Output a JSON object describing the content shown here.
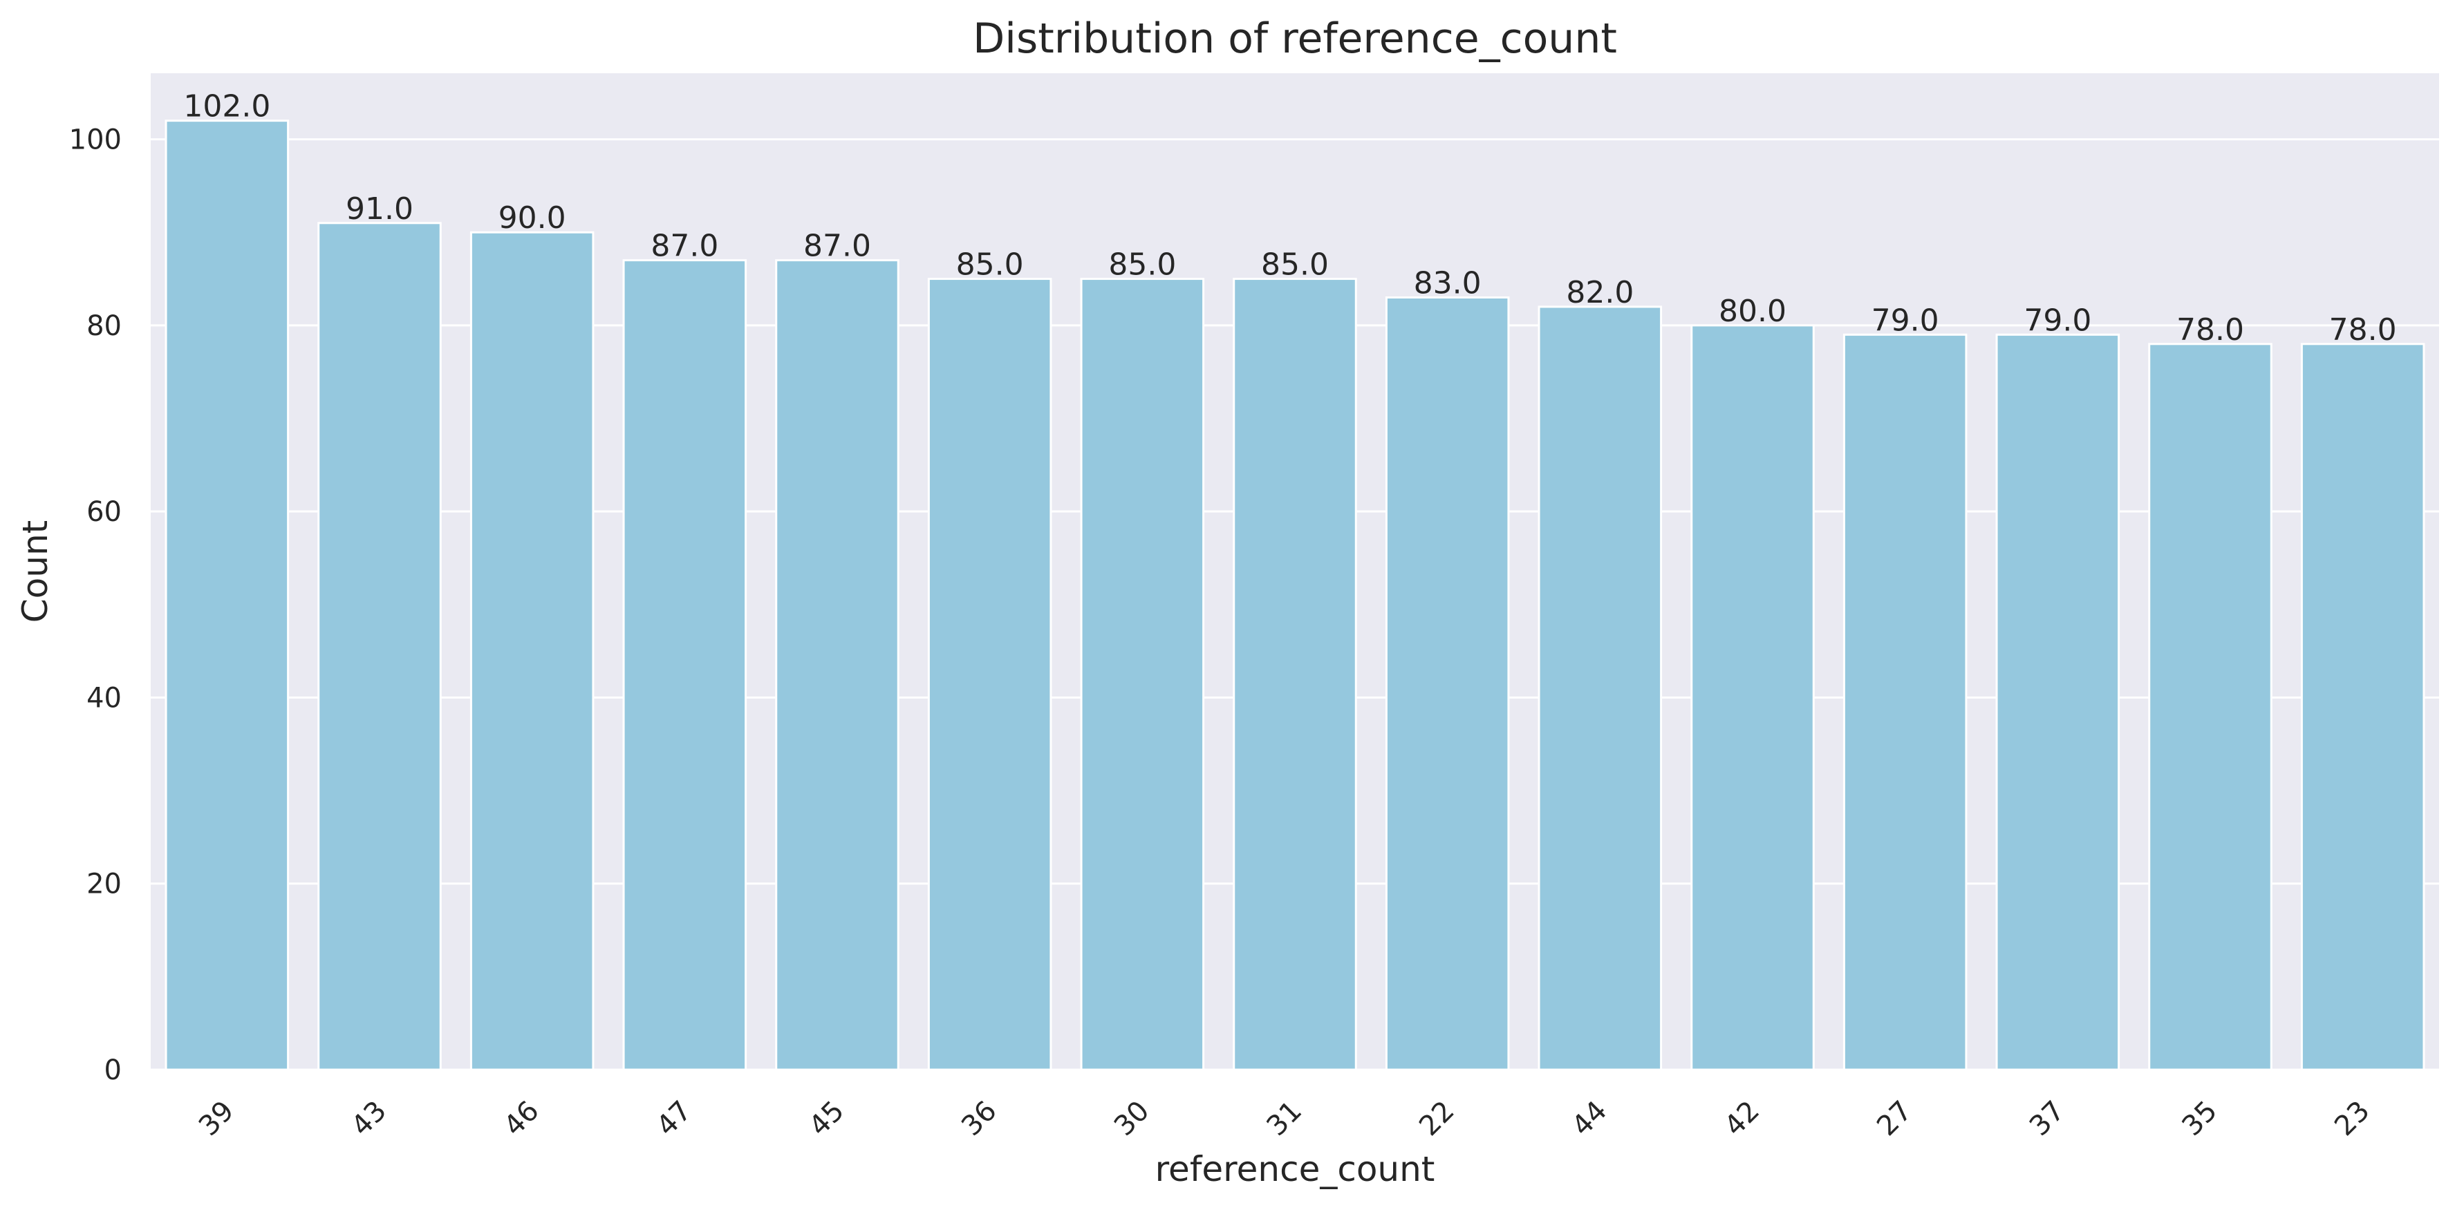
{
  "chart_data": {
    "type": "bar",
    "title": "Distribution of reference_count",
    "xlabel": "reference_count",
    "ylabel": "Count",
    "categories": [
      "39",
      "43",
      "46",
      "47",
      "45",
      "36",
      "30",
      "31",
      "22",
      "44",
      "42",
      "27",
      "37",
      "35",
      "23"
    ],
    "values": [
      102,
      91,
      90,
      87,
      87,
      85,
      85,
      85,
      83,
      82,
      80,
      79,
      79,
      78,
      78
    ],
    "data_labels": [
      "102.0",
      "91.0",
      "90.0",
      "87.0",
      "87.0",
      "85.0",
      "85.0",
      "85.0",
      "83.0",
      "82.0",
      "80.0",
      "79.0",
      "79.0",
      "78.0",
      "78.0"
    ],
    "ylim": [
      0,
      107.1
    ],
    "yticks": [
      0,
      20,
      40,
      60,
      80,
      100
    ],
    "ytick_labels": [
      "0",
      "20",
      "40",
      "60",
      "80",
      "100"
    ],
    "grid": true,
    "legend": false,
    "colors": {
      "bar": "#95c8de",
      "plot_background": "#eaeaf2",
      "grid": "#ffffff",
      "text": "#262626"
    }
  }
}
